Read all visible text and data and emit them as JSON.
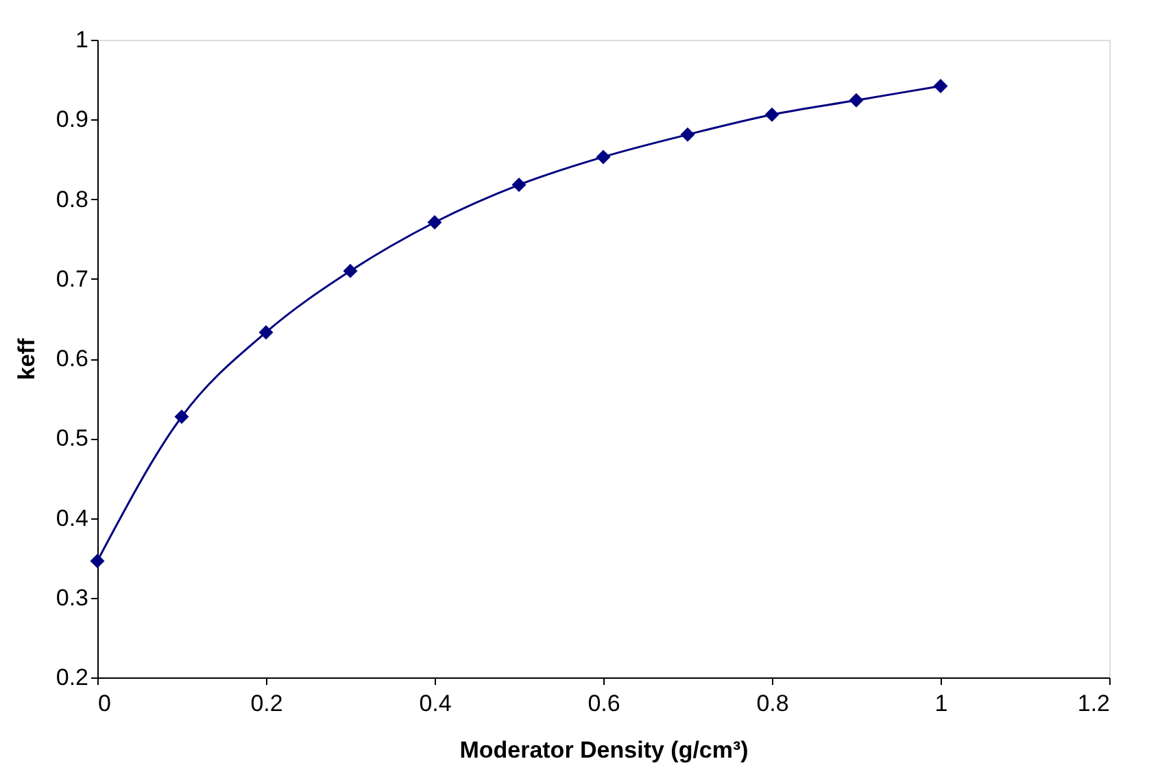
{
  "chart_data": {
    "type": "line",
    "xlabel": "Moderator Density (g/cm³)",
    "ylabel": "keff",
    "x": [
      0,
      0.1,
      0.2,
      0.3,
      0.4,
      0.5,
      0.6,
      0.7,
      0.8,
      0.9,
      1.0
    ],
    "series": [
      {
        "color": "#000080",
        "values": [
          0.346,
          0.527,
          0.633,
          0.71,
          0.771,
          0.818,
          0.853,
          0.881,
          0.906,
          0.924,
          0.942
        ]
      }
    ],
    "xlim": [
      0,
      1.2
    ],
    "xticks": [
      0,
      0.2,
      0.4,
      0.6,
      0.8,
      1,
      1.2
    ],
    "ylim": [
      0.2,
      1
    ],
    "yticks": [
      0.2,
      0.3,
      0.4,
      0.5,
      0.6,
      0.7,
      0.8,
      0.9,
      1
    ],
    "grid": false,
    "legend": false,
    "marker": "diamond",
    "line_style": "solid"
  }
}
